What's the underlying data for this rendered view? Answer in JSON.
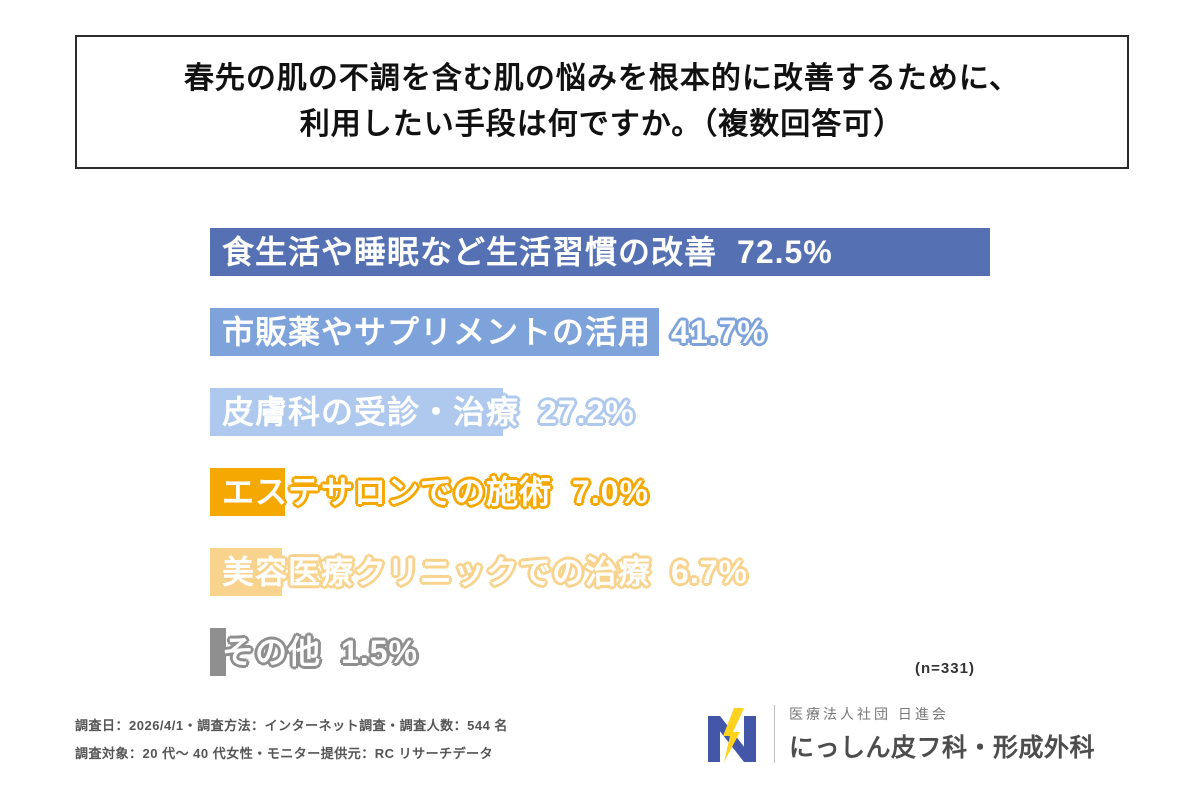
{
  "title": {
    "line1": "春先の肌の不調を含む肌の悩みを根本的に改善するために、",
    "line2": "利用したい手段は何ですか。（複数回答可）"
  },
  "chart_data": {
    "type": "bar",
    "orientation": "horizontal",
    "categories": [
      "食生活や睡眠など生活習慣の改善",
      "市販薬やサプリメントの活用",
      "皮膚科の受診・治療",
      "エステサロンでの施術",
      "美容医療クリニックでの治療",
      "その他"
    ],
    "values": [
      72.5,
      41.7,
      27.2,
      7.0,
      6.7,
      1.5
    ],
    "value_labels": [
      "72.5%",
      "41.7%",
      "27.2%",
      "7.0%",
      "6.7%",
      "1.5%"
    ],
    "bar_colors": [
      "#5571b3",
      "#7ea3db",
      "#aec9ed",
      "#f5a802",
      "#f8d38d",
      "#8f8f8f"
    ],
    "xlim": [
      0,
      75
    ],
    "grid": false,
    "legend": "none",
    "sample_size_label": "(n=331)"
  },
  "footer": {
    "line1": "調査日：2026/4/1・調査方法：インターネット調査・調査人数：544 名",
    "line2": "調査対象：20 代～ 40 代女性・モニター提供元：RC リサーチデータ"
  },
  "logo": {
    "org": "医療法人社団 日進会",
    "name": "にっしん皮フ科・形成外科",
    "colors": {
      "blue": "#4456a8",
      "yellow": "#ffd21e"
    }
  }
}
